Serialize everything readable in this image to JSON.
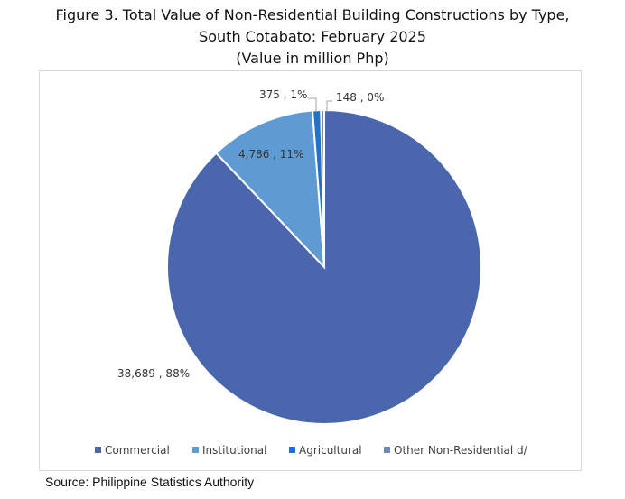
{
  "title_line1": "Figure 3.  Total Value of Non-Residential Building Constructions by Type,",
  "title_line2": "South Cotabato: February 2025",
  "title_line3": "(Value in million Php)",
  "source": "Source: Philippine Statistics Authority",
  "chart_data": {
    "type": "pie",
    "title": "Figure 3.  Total Value of Non-Residential Building Constructions by Type, South Cotabato: February 2025 (Value in million Php)",
    "legend_position": "bottom",
    "slices": [
      {
        "name": "Commercial",
        "value": 38689,
        "label": "38,689 , 88%",
        "color": "#4a66ad"
      },
      {
        "name": "Institutional",
        "value": 4786,
        "label": "4,786 , 11%",
        "color": "#5f9bd3"
      },
      {
        "name": "Agricultural",
        "value": 375,
        "label": "375 , 1%",
        "color": "#2272c9"
      },
      {
        "name": "Other Non-Residential d/",
        "value": 148,
        "label": "148 , 0%",
        "color": "#6b88bf"
      }
    ]
  }
}
